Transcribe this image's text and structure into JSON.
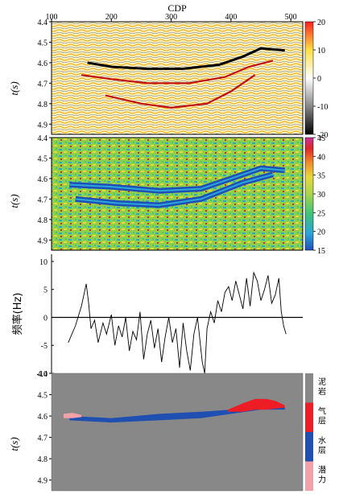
{
  "figure": {
    "xaxis_title": "CDP",
    "x_ticks": [
      "100",
      "200",
      "300",
      "400",
      "500"
    ],
    "time_label": "t(s)",
    "time_ticks": [
      "4.4",
      "4.5",
      "4.6",
      "4.7",
      "4.8",
      "4.9"
    ],
    "freq_label": "频率(Hz)"
  },
  "chart_data": [
    {
      "type": "heatmap",
      "panel": "seismic-section",
      "xlabel": "CDP",
      "ylabel": "t(s)",
      "xlim": [
        100,
        520
      ],
      "ylim": [
        4.4,
        4.95
      ],
      "x_ticks": [
        100,
        200,
        300,
        400,
        500
      ],
      "y_ticks": [
        4.4,
        4.5,
        4.6,
        4.7,
        4.8,
        4.9
      ],
      "colorbar": {
        "ticks": [
          "20",
          "10",
          "0",
          "-10",
          "-20"
        ],
        "range": [
          -20,
          20
        ],
        "colors": [
          "#000000",
          "#888888",
          "#ffffff",
          "#ffe040",
          "#ff2020"
        ]
      },
      "horizons": [
        {
          "x": [
            160,
            200,
            260,
            320,
            380,
            420,
            450,
            490
          ],
          "y": [
            4.6,
            4.62,
            4.63,
            4.63,
            4.61,
            4.57,
            4.53,
            4.54
          ]
        },
        {
          "x": [
            150,
            200,
            260,
            330,
            390,
            430,
            470
          ],
          "y": [
            4.66,
            4.68,
            4.7,
            4.7,
            4.67,
            4.62,
            4.59
          ]
        },
        {
          "x": [
            190,
            250,
            300,
            360,
            400,
            440
          ],
          "y": [
            4.76,
            4.8,
            4.82,
            4.8,
            4.74,
            4.66
          ]
        }
      ]
    },
    {
      "type": "heatmap",
      "panel": "frequency-attribute",
      "xlabel": "CDP",
      "ylabel": "t(s)",
      "xlim": [
        100,
        520
      ],
      "ylim": [
        4.4,
        4.95
      ],
      "y_ticks": [
        4.4,
        4.5,
        4.6,
        4.7,
        4.8,
        4.9
      ],
      "colorbar": {
        "ticks": [
          "45",
          "40",
          "35",
          "30",
          "25",
          "20",
          "15"
        ],
        "range": [
          15,
          45
        ],
        "colors": [
          "#1e4fb8",
          "#2aa6d8",
          "#3cc47a",
          "#a8d64a",
          "#e8d838",
          "#f08a28",
          "#e02828",
          "#c8309a"
        ]
      },
      "low_frequency_bands": [
        {
          "x": [
            130,
            200,
            280,
            350,
            400,
            450,
            490
          ],
          "y": [
            4.63,
            4.64,
            4.66,
            4.65,
            4.6,
            4.55,
            4.56
          ]
        },
        {
          "x": [
            140,
            210,
            280,
            350,
            420,
            470
          ],
          "y": [
            4.7,
            4.72,
            4.73,
            4.7,
            4.62,
            4.58
          ]
        }
      ]
    },
    {
      "type": "line",
      "panel": "frequency-difference",
      "xlabel": "CDP",
      "ylabel": "频率(Hz)",
      "xlim": [
        100,
        520
      ],
      "ylim": [
        -10,
        11
      ],
      "y_ticks": [
        -10,
        -5,
        0,
        5,
        10
      ],
      "zero_line": true,
      "x": [
        128,
        140,
        150,
        158,
        162,
        166,
        172,
        178,
        186,
        192,
        200,
        206,
        212,
        218,
        224,
        230,
        236,
        242,
        248,
        254,
        260,
        266,
        272,
        278,
        284,
        290,
        296,
        302,
        308,
        314,
        320,
        326,
        332,
        338,
        344,
        348,
        352,
        356,
        360,
        366,
        372,
        378,
        384,
        390,
        396,
        402,
        408,
        414,
        420,
        426,
        432,
        438,
        444,
        450,
        456,
        462,
        468,
        474,
        480,
        484,
        488,
        492
      ],
      "y": [
        -4.5,
        -1.5,
        2.0,
        6.0,
        2.5,
        -2.0,
        -0.5,
        -4.5,
        -1.0,
        -3.0,
        0.5,
        -5.0,
        -1.5,
        -3.5,
        0.0,
        -6.0,
        -2.5,
        -4.0,
        1.0,
        -7.5,
        -3.0,
        -0.5,
        -5.5,
        -2.0,
        -8.0,
        -3.5,
        0.0,
        -4.5,
        -2.0,
        -9.0,
        -1.0,
        -6.0,
        -9.5,
        -3.0,
        0.0,
        -4.0,
        -8.0,
        -10.0,
        -2.0,
        1.0,
        -1.0,
        3.0,
        1.0,
        4.5,
        5.5,
        3.0,
        6.5,
        4.0,
        1.5,
        7.0,
        2.0,
        8.0,
        6.5,
        3.0,
        5.0,
        7.5,
        2.5,
        4.0,
        7.0,
        1.0,
        -1.5,
        -3.0
      ]
    },
    {
      "type": "area",
      "panel": "interpretation",
      "xlabel": "CDP",
      "ylabel": "t(s)",
      "xlim": [
        100,
        520
      ],
      "ylim": [
        4.4,
        4.95
      ],
      "y_ticks": [
        4.4,
        4.5,
        4.6,
        4.7,
        4.8,
        4.9
      ],
      "background": "#888888",
      "legend": [
        {
          "label": "泥岩",
          "color": "#888888"
        },
        {
          "label": "气层",
          "color": "#ee1c24"
        },
        {
          "label": "水层",
          "color": "#1f4fb0"
        },
        {
          "label": "潜力",
          "color": "#f4a0a8"
        }
      ],
      "zones": [
        {
          "label": "水层",
          "x": [
            130,
            200,
            280,
            350,
            400,
            450,
            490
          ],
          "top": [
            4.6,
            4.61,
            4.59,
            4.58,
            4.57,
            4.56,
            4.56
          ],
          "bottom": [
            4.62,
            4.63,
            4.62,
            4.61,
            4.59,
            4.57,
            4.57
          ]
        },
        {
          "label": "气层",
          "x": [
            395,
            420,
            440,
            460,
            475,
            490
          ],
          "top": [
            4.57,
            4.54,
            4.52,
            4.52,
            4.53,
            4.55
          ],
          "bottom": [
            4.58,
            4.58,
            4.57,
            4.57,
            4.565,
            4.56
          ]
        },
        {
          "label": "潜力",
          "x": [
            120,
            135,
            150
          ],
          "top": [
            4.59,
            4.585,
            4.595
          ],
          "bottom": [
            4.61,
            4.61,
            4.605
          ]
        }
      ]
    }
  ]
}
